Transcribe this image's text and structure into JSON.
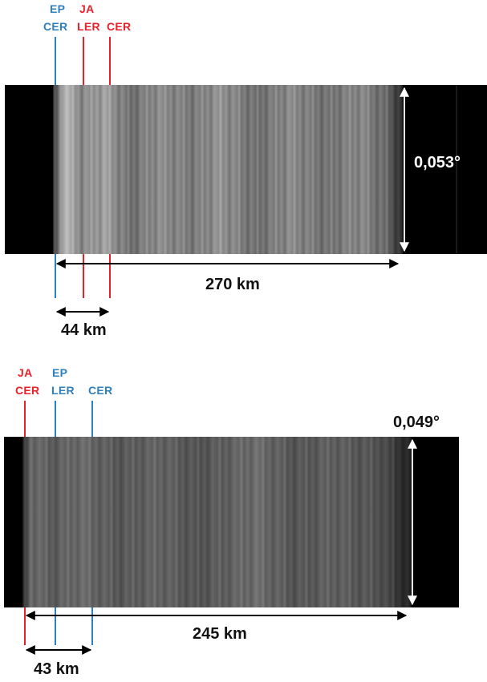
{
  "panel1": {
    "labels": {
      "ep": "EP",
      "cer_blue": "CER",
      "ja": "JA",
      "ler_red": "LER",
      "cer_red": "CER"
    },
    "width_label": "270 km",
    "small_width_label": "44 km",
    "angle_label": "0,053°"
  },
  "panel2": {
    "labels": {
      "ja": "JA",
      "cer_red": "CER",
      "ep": "EP",
      "ler_blue": "LER",
      "cer_blue": "CER"
    },
    "width_label": "245 km",
    "small_width_label": "43 km",
    "angle_label": "0,049°"
  },
  "colors": {
    "blue": "#2e7fbe",
    "red": "#e8202a",
    "black": "#000000"
  }
}
